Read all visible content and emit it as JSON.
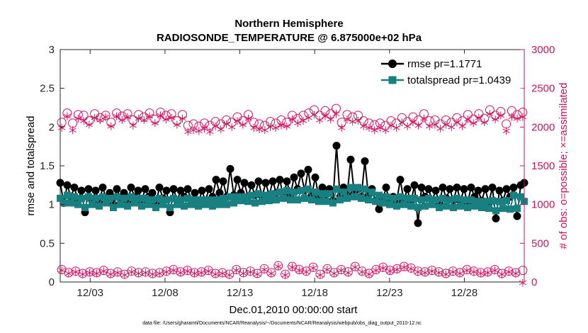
{
  "chart_data": {
    "type": "line",
    "title_line1": "Northern Hemisphere",
    "title_line2": "RADIOSONDE_TEMPERATURE @ 6.875000e+02 hPa",
    "xlabel": "Dec.01,2010 00:00:00 start",
    "ylabel_left": "rmse and totalspread",
    "ylabel_right": "# of obs: o=possible; ×=assimilated",
    "footer": "data file: /Users/gharamti/Documents/NCAR/Reanalysis/~/Documents/NCAR/Reanalysis/webpub/obs_diag_output_2010-12.nc",
    "xlim": [
      0,
      31
    ],
    "ylim_left": [
      0,
      3
    ],
    "ylim_right": [
      0,
      3000
    ],
    "x_ticks": [
      {
        "x": 2,
        "label": "12/03"
      },
      {
        "x": 7,
        "label": "12/08"
      },
      {
        "x": 12,
        "label": "12/13"
      },
      {
        "x": 17,
        "label": "12/18"
      },
      {
        "x": 22,
        "label": "12/23"
      },
      {
        "x": 27,
        "label": "12/28"
      }
    ],
    "y_ticks_left": [
      "0",
      "0.5",
      "1",
      "1.5",
      "2",
      "2.5",
      "3"
    ],
    "y_ticks_right": [
      "0",
      "500",
      "1000",
      "1500",
      "2000",
      "2500",
      "3000"
    ],
    "x_step_days": 0.25,
    "legend": [
      {
        "label": "rmse pr=1.1771",
        "color": "#000000",
        "marker": "circle"
      },
      {
        "label": "totalspread pr=1.0439",
        "color": "#188080",
        "marker": "square"
      }
    ],
    "colors": {
      "rmse": "#000000",
      "spread": "#188080",
      "obs": "#d1115f"
    },
    "series": [
      {
        "name": "rmse",
        "axis": "left",
        "values": [
          1.28,
          1.02,
          1.25,
          1.1,
          1.22,
          1.05,
          1.18,
          0.9,
          1.2,
          1.05,
          1.18,
          1.02,
          1.22,
          1.08,
          1.15,
          1.0,
          1.2,
          1.08,
          1.15,
          1.02,
          1.22,
          1.1,
          1.18,
          1.05,
          1.2,
          1.1,
          1.15,
          1.0,
          1.22,
          1.08,
          1.18,
          0.9,
          1.2,
          1.05,
          1.18,
          1.1,
          1.2,
          1.05,
          1.15,
          1.02,
          1.18,
          1.05,
          1.2,
          1.1,
          1.32,
          1.15,
          1.3,
          1.1,
          1.46,
          1.12,
          1.32,
          1.15,
          1.28,
          1.1,
          1.25,
          1.12,
          1.3,
          1.1,
          1.28,
          1.12,
          1.3,
          1.15,
          1.32,
          1.1,
          1.3,
          1.12,
          1.35,
          1.2,
          1.4,
          1.18,
          1.45,
          1.12,
          1.35,
          1.08,
          1.22,
          1.05,
          1.2,
          1.05,
          1.76,
          1.1,
          1.22,
          1.12,
          1.58,
          1.15,
          1.2,
          1.1,
          1.56,
          1.12,
          1.2,
          1.05,
          0.94,
          1.05,
          1.22,
          1.02,
          1.1,
          1.05,
          1.32,
          1.05,
          1.2,
          1.02,
          1.25,
          0.76,
          1.22,
          1.1,
          1.2,
          1.05,
          1.18,
          1.02,
          1.22,
          1.08,
          1.2,
          1.05,
          1.22,
          1.05,
          1.2,
          1.02,
          1.22,
          1.1,
          1.18,
          1.05,
          1.2,
          1.02,
          1.22,
          0.82,
          1.18,
          1.05,
          1.2,
          1.1,
          1.22,
          0.85,
          1.25,
          1.28
        ]
      },
      {
        "name": "totalspread",
        "axis": "left",
        "values": [
          1.08,
          1.02,
          1.12,
          1.02,
          1.1,
          1.0,
          1.08,
          0.96,
          1.1,
          1.0,
          1.08,
          0.98,
          1.1,
          1.02,
          1.08,
          0.96,
          1.1,
          1.0,
          1.08,
          0.98,
          1.1,
          1.02,
          1.08,
          0.98,
          1.08,
          1.0,
          1.06,
          0.96,
          1.08,
          1.0,
          1.06,
          0.96,
          1.08,
          1.0,
          1.06,
          0.98,
          1.08,
          1.0,
          1.06,
          0.98,
          1.06,
          1.0,
          1.06,
          0.98,
          1.06,
          1.0,
          1.08,
          1.0,
          1.1,
          1.02,
          1.1,
          1.05,
          1.1,
          1.04,
          1.12,
          1.02,
          1.14,
          1.04,
          1.12,
          1.05,
          1.14,
          1.06,
          1.16,
          1.08,
          1.18,
          1.06,
          1.16,
          1.06,
          1.18,
          1.08,
          1.2,
          1.06,
          1.16,
          1.04,
          1.14,
          1.04,
          1.14,
          1.02,
          1.2,
          1.06,
          1.16,
          1.08,
          1.22,
          1.1,
          1.22,
          1.08,
          1.2,
          1.06,
          1.16,
          1.04,
          1.12,
          1.02,
          1.1,
          1.0,
          1.08,
          0.98,
          1.1,
          1.0,
          1.08,
          0.98,
          1.08,
          0.96,
          1.06,
          0.98,
          1.08,
          1.0,
          1.06,
          0.96,
          1.08,
          0.98,
          1.06,
          0.96,
          1.08,
          0.98,
          1.06,
          0.96,
          1.06,
          0.98,
          1.04,
          0.96,
          1.04,
          0.95,
          1.05,
          0.92,
          1.04,
          0.95,
          1.05,
          0.94,
          1.12,
          0.95,
          1.1,
          1.04
        ]
      },
      {
        "name": "possible",
        "axis": "right",
        "marker": "o",
        "values": [
          2060,
          2180,
          2050,
          2160,
          2150,
          2080,
          2170,
          2120,
          2150,
          2060,
          2180,
          2140,
          2170,
          2090,
          2160,
          2130,
          2180,
          2100,
          2190,
          2150,
          2170,
          2080,
          2160,
          2020,
          2040,
          2010,
          2050,
          2020,
          2070,
          2040,
          2090,
          2060,
          2130,
          2080,
          2160,
          2060,
          2040,
          2020,
          2070,
          2050,
          2090,
          2060,
          2150,
          2110,
          2150,
          2180,
          2220,
          2150,
          2210,
          2170,
          2240,
          2060,
          2160,
          2130,
          2150,
          2080,
          2050,
          2030,
          2050,
          2020,
          2080,
          2050,
          2120,
          2070,
          2130,
          2090,
          2170,
          2080,
          2090,
          2040,
          2090,
          2060,
          2120,
          2080,
          2160,
          2100,
          2170,
          2110,
          2220,
          2150,
          2200,
          2040,
          2210,
          2160,
          2190
        ]
      },
      {
        "name": "assimilated",
        "axis": "right",
        "marker": "*",
        "values": [
          1990,
          2140,
          1960,
          2110,
          2080,
          2030,
          2120,
          2090,
          2130,
          2010,
          2140,
          2090,
          2130,
          2020,
          2110,
          2090,
          2140,
          2050,
          2150,
          2100,
          2120,
          2030,
          2110,
          1940,
          1960,
          1950,
          1980,
          1940,
          2010,
          1970,
          2040,
          2000,
          2080,
          2030,
          2110,
          1990,
          1970,
          1960,
          2000,
          1990,
          2020,
          2010,
          2100,
          2050,
          2080,
          2120,
          2160,
          2090,
          2140,
          2100,
          2170,
          1990,
          2100,
          2070,
          2080,
          2010,
          1990,
          1960,
          1990,
          1960,
          2020,
          1990,
          2060,
          2010,
          2060,
          2020,
          2110,
          2010,
          2030,
          1980,
          2030,
          2000,
          2060,
          2010,
          2100,
          2050,
          2120,
          2060,
          2170,
          2100,
          2150,
          1950,
          2130,
          2110,
          2130
        ]
      },
      {
        "name": "possible_rmse_pressure_level",
        "axis": "right",
        "marker": "o",
        "values": [
          160,
          120,
          140,
          110,
          130,
          120,
          150,
          110,
          130,
          100,
          140,
          120,
          130,
          110,
          120,
          140,
          160,
          130,
          150,
          120,
          130,
          150,
          110,
          120,
          100,
          160,
          120,
          140,
          110,
          170,
          120,
          210,
          100,
          200,
          160,
          140,
          190,
          100,
          170,
          120,
          160,
          130,
          200,
          140,
          110,
          160,
          190,
          150,
          170,
          200,
          180,
          140,
          130,
          150,
          130,
          110,
          140,
          120,
          160,
          140,
          120,
          130,
          160,
          110,
          140,
          120,
          150
        ]
      },
      {
        "name": "assimilated_rmse_pressure_level",
        "axis": "right",
        "marker": "*",
        "values": [
          150,
          110,
          130,
          100,
          120,
          110,
          140,
          100,
          120,
          90,
          130,
          110,
          120,
          100,
          110,
          130,
          150,
          120,
          140,
          110,
          120,
          140,
          100,
          110,
          90,
          150,
          110,
          130,
          100,
          160,
          110,
          200,
          90,
          190,
          150,
          130,
          180,
          90,
          160,
          110,
          150,
          120,
          190,
          130,
          100,
          150,
          180,
          140,
          160,
          190,
          170,
          130,
          120,
          140,
          120,
          100,
          130,
          110,
          150,
          130,
          110,
          120,
          150,
          100,
          130,
          110,
          -10
        ]
      }
    ]
  }
}
